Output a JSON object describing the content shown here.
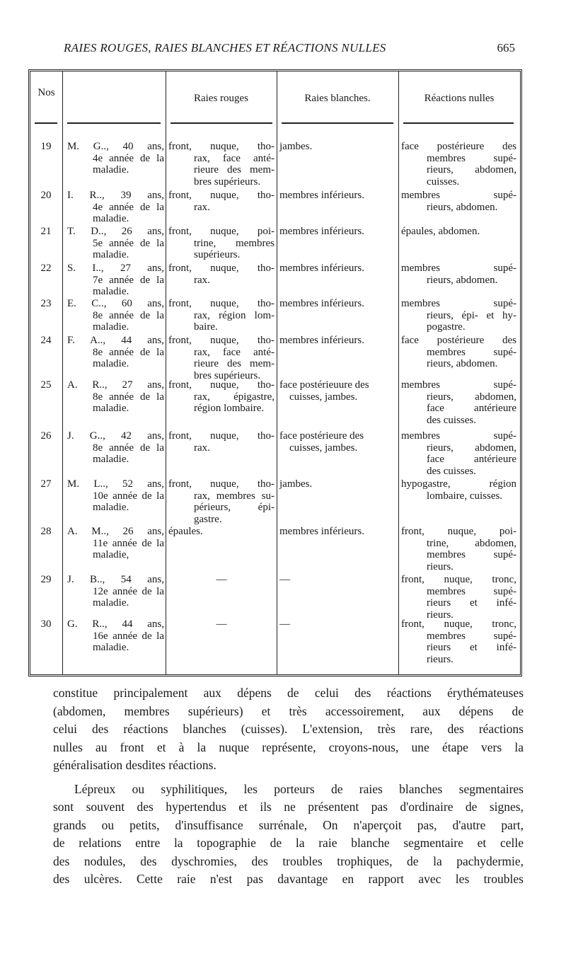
{
  "header": {
    "running_title": "RAIES ROUGES, RAIES BLANCHES ET RÉACTIONS NULLES",
    "page_number": "665"
  },
  "table": {
    "columns": [
      "Nos",
      "",
      "Raies rouges",
      "Raies blanches.",
      "Réactions nulles"
    ],
    "rows": [
      {
        "no": "19",
        "name": [
          "M. G.., 40 ans,",
          "4e année de la",
          "maladie."
        ],
        "rouges": [
          "front, nuque, tho-",
          "rax, face anté-",
          "rieure des mem-",
          "bres supérieurs."
        ],
        "blanches": [
          "jambes."
        ],
        "reactions": [
          "face postérieure des",
          "membres supé-",
          "rieurs, abdomen,",
          "cuisses."
        ]
      },
      {
        "no": "20",
        "name": [
          "I. R.., 39 ans,",
          "4e année de la",
          "maladie."
        ],
        "rouges": [
          "front, nuque, tho-",
          "rax."
        ],
        "blanches": [
          "membres inférieurs."
        ],
        "reactions": [
          "membres supé-",
          "rieurs, abdomen."
        ]
      },
      {
        "no": "21",
        "name": [
          "T. D.., 26 ans,",
          "5e année de la",
          "maladie."
        ],
        "rouges": [
          "front, nuque, poi-",
          "trine, membres",
          "supérieurs."
        ],
        "blanches": [
          "membres inférieurs."
        ],
        "reactions": [
          "épaules, abdomen."
        ]
      },
      {
        "no": "22",
        "name": [
          "S. I.., 27 ans,",
          "7e année de la",
          "maladie."
        ],
        "rouges": [
          "front, nuque, tho-",
          "rax."
        ],
        "blanches": [
          "membres inférieurs."
        ],
        "reactions": [
          "membres supé-",
          "rieurs, abdomen."
        ]
      },
      {
        "no": "23",
        "name": [
          "E. C.., 60 ans,",
          "8e année de la",
          "maladie."
        ],
        "rouges": [
          "front, nuque, tho-",
          "rax, région lom-",
          "baire."
        ],
        "blanches": [
          "membres inférieurs."
        ],
        "reactions": [
          "membres supé-",
          "rieurs, épi- et hy-",
          "pogastre."
        ]
      },
      {
        "no": "24",
        "name": [
          "F. A.., 44 ans,",
          "8e année de la",
          "maladie."
        ],
        "rouges": [
          "front, nuque, tho-",
          "rax, face anté-",
          "rieure des mem-",
          "bres supérieurs."
        ],
        "blanches": [
          "membres inférieurs."
        ],
        "reactions": [
          "face postérieure des",
          "membres supé-",
          "rieurs, abdomen."
        ]
      },
      {
        "no": "25",
        "name": [
          "A. R.., 27 ans,",
          "8e année de la",
          "maladie."
        ],
        "rouges": [
          "front, nuque, tho-",
          "rax, épigastre,",
          "région lombaire."
        ],
        "blanches": [
          "face postérieuure des",
          "cuisses, jambes."
        ],
        "reactions": [
          "membres supé-",
          "rieurs, abdomen,",
          "face antérieure",
          "des cuisses."
        ]
      },
      {
        "no": "26",
        "name": [
          "J. G.., 42 ans,",
          "8e année de la",
          "maladie."
        ],
        "rouges": [
          "front, nuque, tho-",
          "rax."
        ],
        "blanches": [
          "face postérieure des",
          "cuisses, jambes."
        ],
        "reactions": [
          "membres supé-",
          "rieurs, abdomen,",
          "face antérieure",
          "des cuisses."
        ]
      },
      {
        "no": "27",
        "name": [
          "M. L.., 52 ans,",
          "10e année de la",
          "maladie."
        ],
        "rouges": [
          "front, nuque, tho-",
          "rax, membres su-",
          "périeurs, épi-",
          "gastre."
        ],
        "blanches": [
          "jambes."
        ],
        "reactions": [
          "hypogastre, région",
          "lombaire, cuisses."
        ]
      },
      {
        "no": "28",
        "name": [
          "A. M.., 26 ans,",
          "11e année de la",
          "maladie,"
        ],
        "rouges": [
          "épaules."
        ],
        "blanches": [
          "membres inférieurs."
        ],
        "reactions": [
          "front, nuque, poi-",
          "trine, abdomen,",
          "membres supé-",
          "rieurs."
        ]
      },
      {
        "no": "29",
        "name": [
          "J. B.., 54 ans,",
          "12e année de la",
          "maladie."
        ],
        "rouges": [
          "—"
        ],
        "blanches": [
          "—"
        ],
        "reactions": [
          "front, nuque, tronc,",
          "membres supé-",
          "rieurs et infé-",
          "rieurs."
        ]
      },
      {
        "no": "30",
        "name": [
          "G. R.., 44 ans,",
          "16e année de la",
          "maladie."
        ],
        "rouges": [
          "—"
        ],
        "blanches": [
          "—"
        ],
        "reactions": [
          "front, nuque, tronc,",
          "membres supé-",
          "rieurs et infé-",
          "rieurs."
        ]
      }
    ]
  },
  "body": {
    "paragraphs": [
      [
        "constitue principalement aux dépens de celui des réactions érythémateuses",
        "(abdomen, membres supérieurs) et très accessoirement, aux dépens de",
        "celui des réactions blanches (cuisses). L'extension, très rare, des réactions",
        "nulles au front et à la nuque représente, croyons-nous, une étape vers la",
        "généralisation desdites réactions."
      ],
      [
        "Lépreux ou syphilitiques, les porteurs de raies blanches segmentaires",
        "sont souvent des hypertendus et ils ne présentent pas d'ordinaire de signes,",
        "grands ou petits, d'insuffisance surrénale, On n'aperçoit pas, d'autre part,",
        "de relations entre la topographie de la raie blanche segmentaire et celle",
        "des nodules, des dyschromies, des troubles trophiques, de la pachydermie,",
        "des ulcères. Cette raie n'est pas davantage en rapport avec les troubles"
      ]
    ]
  }
}
